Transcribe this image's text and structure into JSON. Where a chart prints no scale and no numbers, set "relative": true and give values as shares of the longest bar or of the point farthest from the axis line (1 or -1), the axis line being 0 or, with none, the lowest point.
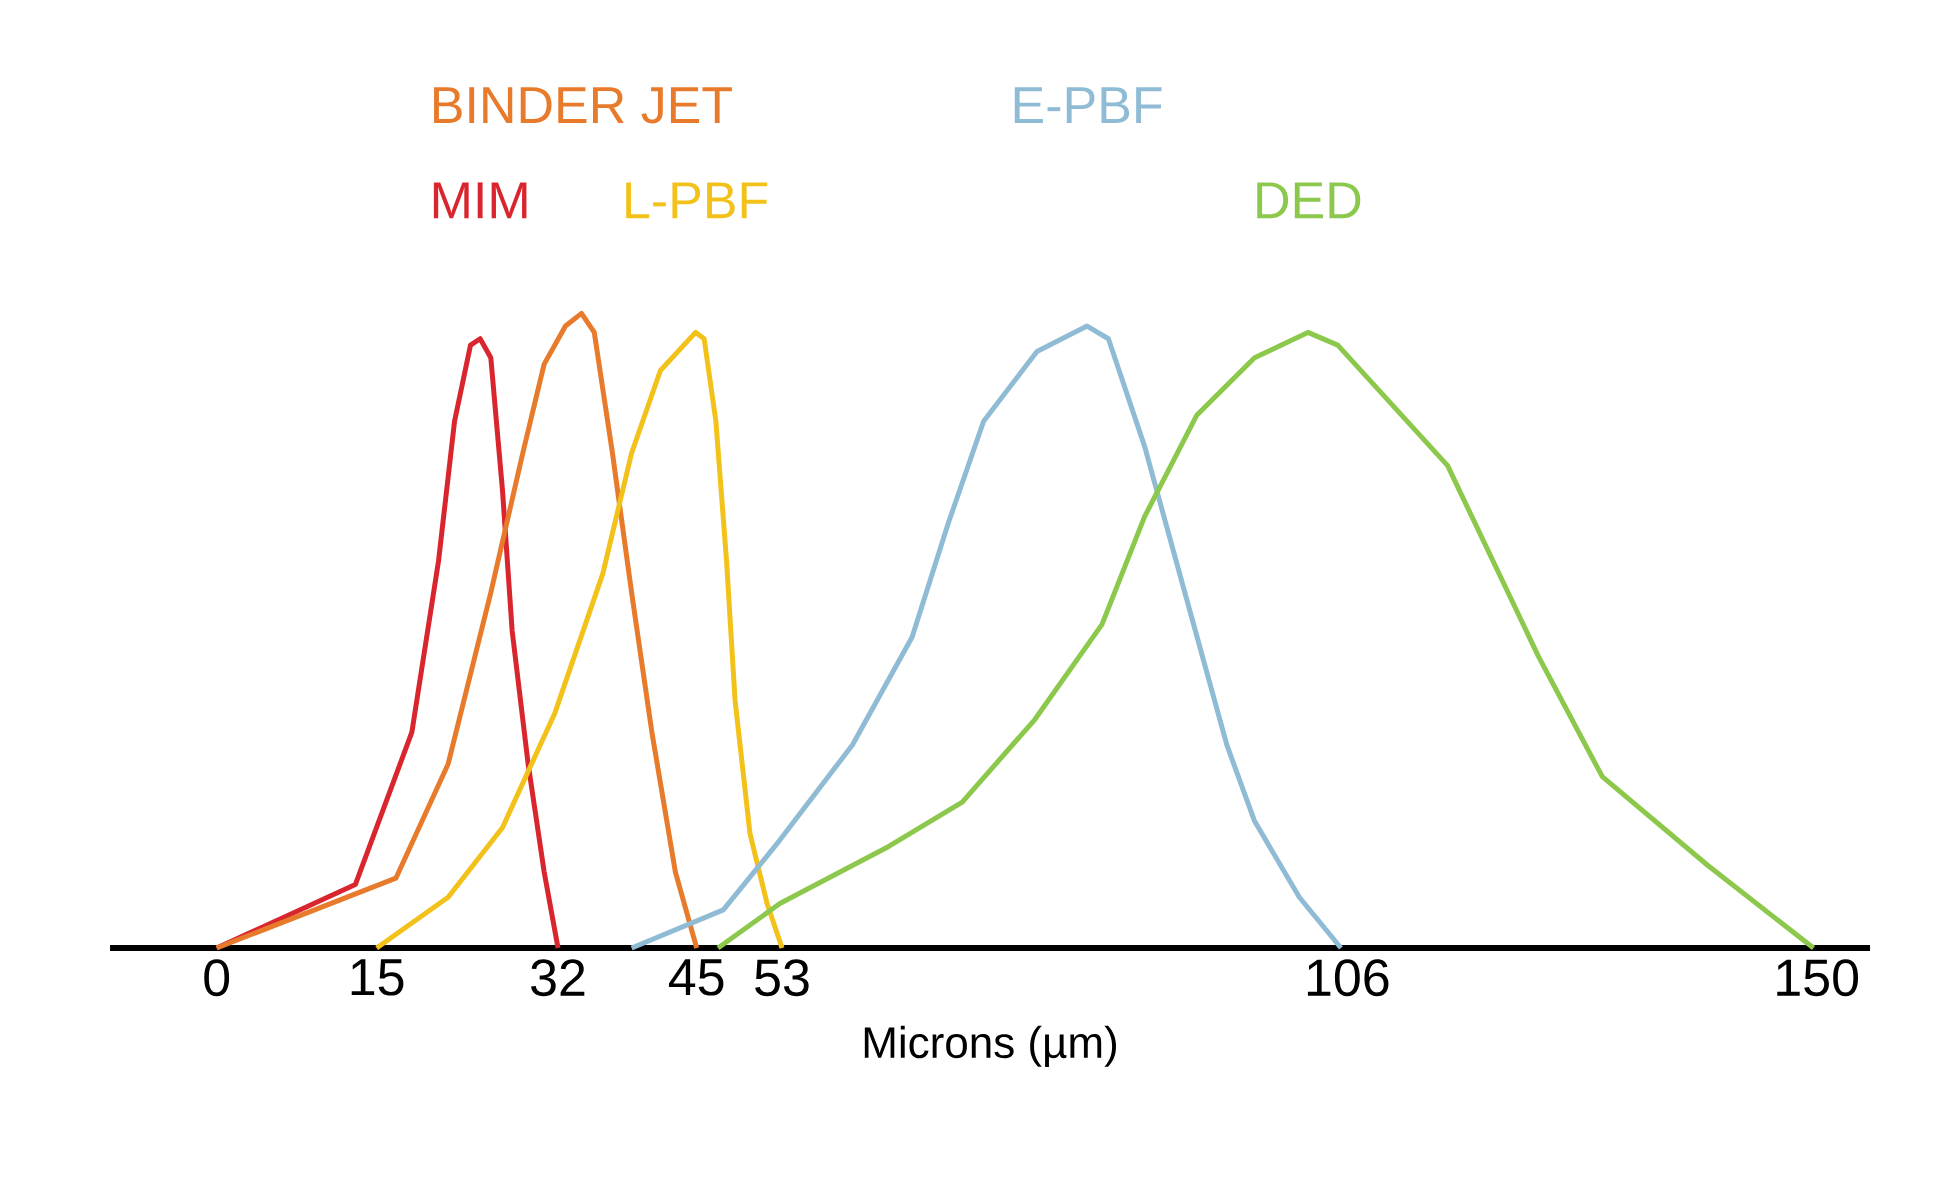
{
  "chart_data": {
    "type": "line",
    "relative": true,
    "xlabel": "Microns (µm)",
    "xlim": [
      -10,
      155
    ],
    "xticks": [
      0,
      15,
      32,
      45,
      53,
      106,
      150
    ],
    "series": [
      {
        "name": "MIM",
        "color": "#d9262e",
        "x": [
          0,
          13.0,
          18.3,
          20.8,
          22.3,
          23.8,
          24.7,
          25.7,
          26.8,
          27.7,
          29.2,
          30.7,
          32
        ],
        "values": [
          0,
          0.1,
          0.34,
          0.61,
          0.83,
          0.95,
          0.96,
          0.93,
          0.72,
          0.5,
          0.29,
          0.12,
          0
        ]
      },
      {
        "name": "BINDER JET",
        "color": "#e87b2b",
        "x": [
          0,
          16.8,
          21.7,
          25.7,
          28.7,
          30.7,
          32.7,
          34.2,
          35.4,
          37.1,
          38.9,
          40.8,
          43.0,
          45
        ],
        "values": [
          0,
          0.11,
          0.29,
          0.56,
          0.78,
          0.92,
          0.98,
          1.0,
          0.97,
          0.78,
          0.56,
          0.34,
          0.12,
          0
        ]
      },
      {
        "name": "L-PBF",
        "color": "#f2c21a",
        "x": [
          15,
          21.7,
          26.8,
          31.7,
          36.2,
          38.9,
          41.6,
          44.9,
          45.7,
          46.8,
          47.8,
          48.6,
          50.0,
          51.6,
          53
        ],
        "values": [
          0,
          0.08,
          0.19,
          0.37,
          0.59,
          0.78,
          0.91,
          0.97,
          0.96,
          0.83,
          0.61,
          0.39,
          0.18,
          0.07,
          0
        ]
      },
      {
        "name": "E-PBF",
        "color": "#8fbcd4",
        "x": [
          38.9,
          47.5,
          52.8,
          59.6,
          65.2,
          68.6,
          71.9,
          76.9,
          81.6,
          83.6,
          87.0,
          90.6,
          94.7,
          97.3,
          101.5,
          105.4
        ],
        "values": [
          0,
          0.06,
          0.17,
          0.32,
          0.49,
          0.67,
          0.83,
          0.94,
          0.98,
          0.96,
          0.79,
          0.57,
          0.32,
          0.2,
          0.08,
          0
        ]
      },
      {
        "name": "DED",
        "color": "#8cc84b",
        "x": [
          47.0,
          52.8,
          63.0,
          69.9,
          76.7,
          83.0,
          87.0,
          91.9,
          97.3,
          102.3,
          105.1,
          115.4,
          123.9,
          129.9,
          139.8,
          149.7
        ],
        "values": [
          0,
          0.07,
          0.16,
          0.23,
          0.36,
          0.51,
          0.68,
          0.84,
          0.93,
          0.97,
          0.95,
          0.76,
          0.46,
          0.27,
          0.13,
          0
        ]
      }
    ]
  }
}
